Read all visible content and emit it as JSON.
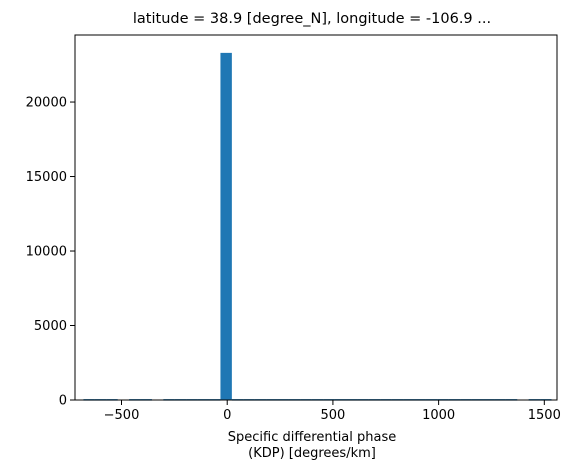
{
  "chart_data": {
    "type": "bar",
    "title": "latitude = 38.9 [degree_N], longitude = -106.9 ...",
    "xlabel_lines": [
      "Specific differential phase",
      "(KDP) [degrees/km]"
    ],
    "ylabel": "",
    "xlim": [
      -720,
      1560
    ],
    "ylim": [
      0,
      24500
    ],
    "xticks": [
      -500,
      0,
      500,
      1000,
      1500
    ],
    "xtick_labels": [
      "−500",
      "0",
      "500",
      "1000",
      "1500"
    ],
    "yticks": [
      0,
      5000,
      10000,
      15000,
      20000
    ],
    "ytick_labels": [
      "0",
      "5000",
      "10000",
      "15000",
      "20000"
    ],
    "bin_edges": [
      -680,
      -626,
      -572,
      -518,
      -464,
      -410,
      -356,
      -302,
      -248,
      -194,
      -140,
      -86,
      -32,
      22,
      76,
      130,
      184,
      238,
      292,
      346,
      400,
      454,
      508,
      562,
      616,
      670,
      724,
      778,
      832,
      886,
      940,
      994,
      1048,
      1102,
      1156,
      1210,
      1264,
      1318,
      1372,
      1426,
      1480,
      1534
    ],
    "counts": [
      60,
      60,
      60,
      0,
      60,
      60,
      0,
      60,
      60,
      60,
      60,
      60,
      23300,
      60,
      60,
      60,
      60,
      60,
      60,
      60,
      60,
      60,
      60,
      60,
      60,
      60,
      60,
      60,
      60,
      60,
      60,
      60,
      60,
      60,
      60,
      60,
      60,
      60,
      0,
      60,
      60
    ],
    "bar_color": "#1f77b4",
    "grid": false,
    "legend": "none"
  }
}
